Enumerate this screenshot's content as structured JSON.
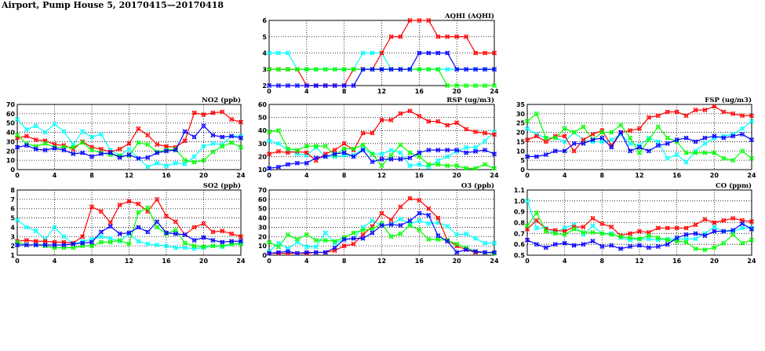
{
  "title": "Airport, Pump House 5, 20170415—20170418",
  "series_colors": {
    "red": "#ff0000",
    "cyan": "#00ffff",
    "green": "#00ff00",
    "blue": "#0000ff"
  },
  "chart_data": [
    {
      "type": "line",
      "title": "AQHI (AQHI)",
      "xlim": [
        0,
        24
      ],
      "xticks": [
        0,
        4,
        8,
        12,
        16,
        20,
        24
      ],
      "ylim": [
        2,
        6
      ],
      "yticks": [
        2,
        3,
        4,
        5,
        6
      ],
      "grid": true,
      "x": [
        0,
        1,
        2,
        3,
        4,
        5,
        6,
        7,
        8,
        9,
        10,
        11,
        12,
        13,
        14,
        15,
        16,
        17,
        18,
        19,
        20,
        21,
        22,
        23,
        24
      ],
      "series": [
        {
          "color": "cyan",
          "values": [
            4,
            4,
            4,
            3,
            3,
            3,
            3,
            3,
            3,
            3,
            4,
            4,
            4,
            3,
            3,
            3,
            3,
            3,
            3,
            3,
            3,
            3,
            3,
            3,
            3
          ]
        },
        {
          "color": "red",
          "values": [
            3,
            3,
            3,
            3,
            2,
            2,
            2,
            2,
            2,
            3,
            3,
            3,
            4,
            5,
            5,
            6,
            6,
            6,
            5,
            5,
            5,
            5,
            4,
            4,
            4
          ]
        },
        {
          "color": "green",
          "values": [
            3,
            3,
            3,
            3,
            3,
            3,
            3,
            3,
            3,
            3,
            3,
            3,
            3,
            3,
            3,
            3,
            3,
            3,
            3,
            2,
            2,
            2,
            2,
            2,
            2
          ]
        },
        {
          "color": "blue",
          "values": [
            2,
            2,
            2,
            2,
            2,
            2,
            2,
            2,
            2,
            2,
            3,
            3,
            3,
            3,
            3,
            3,
            4,
            4,
            4,
            4,
            3,
            3,
            3,
            3,
            3
          ]
        }
      ]
    },
    {
      "type": "line",
      "title": "NO2 (ppb)",
      "xlim": [
        0,
        24
      ],
      "xticks": [
        0,
        4,
        8,
        12,
        16,
        20,
        24
      ],
      "ylim": [
        0,
        70
      ],
      "yticks": [
        0,
        10,
        20,
        30,
        40,
        50,
        60,
        70
      ],
      "grid": true,
      "x": [
        0,
        1,
        2,
        3,
        4,
        5,
        6,
        7,
        8,
        9,
        10,
        11,
        12,
        13,
        14,
        15,
        16,
        17,
        18,
        19,
        20,
        21,
        22,
        23,
        24
      ],
      "series": [
        {
          "color": "cyan",
          "values": [
            54,
            43,
            47,
            40,
            49,
            41,
            27,
            41,
            35,
            38,
            21,
            15,
            22,
            12,
            3,
            7,
            4,
            7,
            6,
            14,
            25,
            28,
            27,
            36,
            36
          ]
        },
        {
          "color": "red",
          "values": [
            34,
            36,
            32,
            31,
            27,
            26,
            22,
            30,
            24,
            22,
            19,
            22,
            28,
            44,
            37,
            27,
            25,
            24,
            31,
            61,
            59,
            61,
            62,
            54,
            51
          ]
        },
        {
          "color": "green",
          "values": [
            37,
            28,
            25,
            28,
            24,
            24,
            24,
            29,
            21,
            18,
            16,
            15,
            15,
            29,
            27,
            19,
            21,
            22,
            10,
            8,
            10,
            19,
            25,
            29,
            24
          ]
        },
        {
          "color": "blue",
          "values": [
            24,
            26,
            22,
            21,
            23,
            21,
            17,
            18,
            14,
            17,
            18,
            13,
            16,
            12,
            13,
            18,
            20,
            21,
            41,
            35,
            47,
            37,
            35,
            36,
            34
          ]
        }
      ]
    },
    {
      "type": "line",
      "title": "RSP (ug/m3)",
      "xlim": [
        0,
        24
      ],
      "xticks": [
        0,
        4,
        8,
        12,
        16,
        20,
        24
      ],
      "ylim": [
        10,
        60
      ],
      "yticks": [
        10,
        20,
        30,
        40,
        50,
        60
      ],
      "grid": true,
      "x": [
        0,
        1,
        2,
        3,
        4,
        5,
        6,
        7,
        8,
        9,
        10,
        11,
        12,
        13,
        14,
        15,
        16,
        17,
        18,
        19,
        20,
        21,
        22,
        23,
        24
      ],
      "series": [
        {
          "color": "cyan",
          "values": [
            32,
            30,
            25,
            22,
            21,
            27,
            20,
            20,
            21,
            21,
            26,
            22,
            22,
            25,
            23,
            13,
            14,
            12,
            17,
            20,
            24,
            27,
            27,
            32,
            39
          ]
        },
        {
          "color": "red",
          "values": [
            22,
            24,
            23,
            24,
            23,
            17,
            22,
            25,
            30,
            25,
            38,
            38,
            48,
            48,
            53,
            55,
            51,
            47,
            47,
            44,
            46,
            41,
            39,
            38,
            37
          ]
        },
        {
          "color": "green",
          "values": [
            39,
            40,
            26,
            25,
            28,
            28,
            28,
            21,
            26,
            26,
            29,
            22,
            13,
            21,
            29,
            23,
            20,
            14,
            14,
            13,
            13,
            11,
            11,
            14,
            11
          ]
        },
        {
          "color": "blue",
          "values": [
            11,
            12,
            14,
            15,
            15,
            19,
            20,
            22,
            23,
            20,
            25,
            16,
            18,
            18,
            18,
            19,
            23,
            25,
            25,
            25,
            25,
            23,
            24,
            25,
            22
          ]
        }
      ]
    },
    {
      "type": "line",
      "title": "FSP (ug/m3)",
      "xlim": [
        0,
        24
      ],
      "xticks": [
        0,
        4,
        8,
        12,
        16,
        20,
        24
      ],
      "ylim": [
        0,
        35
      ],
      "yticks": [
        0,
        5,
        10,
        15,
        20,
        25,
        30,
        35
      ],
      "grid": true,
      "x": [
        0,
        1,
        2,
        3,
        4,
        5,
        6,
        7,
        8,
        9,
        10,
        11,
        12,
        13,
        14,
        15,
        16,
        17,
        18,
        19,
        20,
        21,
        22,
        23,
        24
      ],
      "series": [
        {
          "color": "cyan",
          "values": [
            22,
            19,
            17,
            17,
            15,
            20,
            16,
            15,
            15,
            16,
            19,
            14,
            13,
            17,
            15,
            6,
            8,
            4,
            10,
            14,
            17,
            18,
            19,
            22,
            26
          ]
        },
        {
          "color": "red",
          "values": [
            16,
            18,
            15,
            18,
            18,
            10,
            16,
            19,
            21,
            13,
            20,
            21,
            22,
            28,
            29,
            31,
            31,
            29,
            32,
            32,
            34,
            31,
            30,
            29,
            29
          ]
        },
        {
          "color": "green",
          "values": [
            26,
            30,
            17,
            17,
            22,
            20,
            23,
            16,
            20,
            20,
            24,
            17,
            9,
            16,
            23,
            17,
            15,
            9,
            9,
            9,
            9,
            6,
            5,
            10,
            6
          ]
        },
        {
          "color": "blue",
          "values": [
            7,
            7,
            8,
            10,
            10,
            14,
            14,
            16,
            17,
            12,
            20,
            10,
            12,
            10,
            13,
            14,
            16,
            17,
            15,
            17,
            18,
            17,
            18,
            19,
            16
          ]
        }
      ]
    },
    {
      "type": "line",
      "title": "SO2 (ppb)",
      "xlim": [
        0,
        24
      ],
      "xticks": [
        0,
        4,
        8,
        12,
        16,
        20,
        24
      ],
      "ylim": [
        1,
        8
      ],
      "yticks": [
        1,
        2,
        3,
        4,
        5,
        6,
        7,
        8
      ],
      "grid": true,
      "x": [
        0,
        1,
        2,
        3,
        4,
        5,
        6,
        7,
        8,
        9,
        10,
        11,
        12,
        13,
        14,
        15,
        16,
        17,
        18,
        19,
        20,
        21,
        22,
        23,
        24
      ],
      "series": [
        {
          "color": "cyan",
          "values": [
            4.8,
            4.0,
            3.6,
            2.7,
            4.0,
            3.0,
            2.2,
            2.5,
            2.7,
            3.0,
            2.8,
            2.5,
            3.3,
            2.5,
            2.2,
            2.1,
            2.0,
            1.8,
            1.8,
            1.7,
            1.8,
            2.0,
            1.9,
            2.2,
            2.3
          ]
        },
        {
          "color": "red",
          "values": [
            2.5,
            2.6,
            2.5,
            2.5,
            2.4,
            2.4,
            2.3,
            3.0,
            6.2,
            5.7,
            4.5,
            6.4,
            6.8,
            6.5,
            5.7,
            7.0,
            5.2,
            4.6,
            3.2,
            4.0,
            4.4,
            3.5,
            3.6,
            3.3,
            3.0
          ]
        },
        {
          "color": "green",
          "values": [
            2.4,
            2.1,
            2.1,
            2.0,
            1.8,
            1.8,
            1.8,
            2.0,
            2.0,
            2.4,
            2.4,
            2.6,
            2.2,
            5.6,
            6.1,
            4.0,
            3.3,
            3.7,
            2.3,
            2.0,
            1.9,
            2.0,
            2.0,
            2.2,
            2.2
          ]
        },
        {
          "color": "blue",
          "values": [
            2.1,
            2.1,
            2.1,
            2.1,
            2.1,
            2.1,
            2.2,
            2.3,
            2.4,
            3.5,
            4.1,
            3.3,
            3.4,
            4.0,
            3.5,
            4.6,
            3.4,
            3.3,
            3.2,
            2.6,
            2.9,
            2.6,
            2.4,
            2.5,
            2.5
          ]
        }
      ]
    },
    {
      "type": "line",
      "title": "O3 (ppb)",
      "xlim": [
        0,
        24
      ],
      "xticks": [
        0,
        4,
        8,
        12,
        16,
        20,
        24
      ],
      "ylim": [
        0,
        70
      ],
      "yticks": [
        0,
        10,
        20,
        30,
        40,
        50,
        60,
        70
      ],
      "grid": true,
      "x": [
        0,
        1,
        2,
        3,
        4,
        5,
        6,
        7,
        8,
        9,
        10,
        11,
        12,
        13,
        14,
        15,
        16,
        17,
        18,
        19,
        20,
        21,
        22,
        23,
        24
      ],
      "series": [
        {
          "color": "cyan",
          "values": [
            4,
            13,
            7,
            14,
            9,
            9,
            24,
            13,
            17,
            18,
            30,
            37,
            32,
            33,
            39,
            34,
            37,
            34,
            35,
            31,
            22,
            23,
            18,
            13,
            13
          ]
        },
        {
          "color": "red",
          "values": [
            2,
            2,
            2,
            2,
            2,
            3,
            3,
            5,
            10,
            12,
            22,
            31,
            45,
            38,
            52,
            61,
            59,
            50,
            40,
            16,
            10,
            6,
            3,
            3,
            2
          ]
        },
        {
          "color": "green",
          "values": [
            14,
            9,
            22,
            17,
            22,
            16,
            16,
            15,
            19,
            24,
            27,
            28,
            34,
            20,
            23,
            32,
            27,
            17,
            17,
            16,
            12,
            8,
            4,
            3,
            2
          ]
        },
        {
          "color": "blue",
          "values": [
            2,
            3,
            4,
            2,
            3,
            3,
            3,
            8,
            17,
            18,
            18,
            24,
            32,
            33,
            32,
            37,
            45,
            43,
            21,
            15,
            3,
            6,
            4,
            3,
            3
          ]
        }
      ]
    },
    {
      "type": "line",
      "title": "CO (ppm)",
      "xlim": [
        0,
        24
      ],
      "xticks": [
        0,
        4,
        8,
        12,
        16,
        20,
        24
      ],
      "ylim": [
        0.5,
        1.1
      ],
      "yticks": [
        0.5,
        0.6,
        0.7,
        0.8,
        0.9,
        1.0,
        1.1
      ],
      "grid": true,
      "x": [
        0,
        1,
        2,
        3,
        4,
        5,
        6,
        7,
        8,
        9,
        10,
        11,
        12,
        13,
        14,
        15,
        16,
        17,
        18,
        19,
        20,
        21,
        22,
        23,
        24
      ],
      "series": [
        {
          "color": "cyan",
          "values": [
            1.0,
            0.75,
            0.75,
            0.71,
            0.75,
            0.78,
            0.69,
            0.77,
            0.7,
            0.7,
            0.66,
            0.64,
            0.65,
            0.65,
            0.64,
            0.65,
            0.65,
            0.65,
            0.65,
            0.7,
            0.76,
            0.72,
            0.72,
            0.75,
            0.75
          ]
        },
        {
          "color": "red",
          "values": [
            0.74,
            0.82,
            0.74,
            0.73,
            0.72,
            0.76,
            0.76,
            0.84,
            0.79,
            0.76,
            0.68,
            0.7,
            0.72,
            0.71,
            0.75,
            0.75,
            0.75,
            0.75,
            0.78,
            0.83,
            0.8,
            0.82,
            0.84,
            0.82,
            0.81
          ]
        },
        {
          "color": "green",
          "values": [
            0.77,
            0.89,
            0.72,
            0.7,
            0.69,
            0.74,
            0.71,
            0.71,
            0.7,
            0.69,
            0.67,
            0.66,
            0.65,
            0.68,
            0.66,
            0.64,
            0.63,
            0.62,
            0.56,
            0.55,
            0.57,
            0.61,
            0.69,
            0.61,
            0.64
          ]
        },
        {
          "color": "blue",
          "values": [
            0.64,
            0.6,
            0.57,
            0.6,
            0.61,
            0.59,
            0.6,
            0.63,
            0.58,
            0.59,
            0.56,
            0.58,
            0.59,
            0.57,
            0.58,
            0.6,
            0.66,
            0.69,
            0.7,
            0.68,
            0.72,
            0.72,
            0.73,
            0.79,
            0.74
          ]
        }
      ]
    }
  ]
}
